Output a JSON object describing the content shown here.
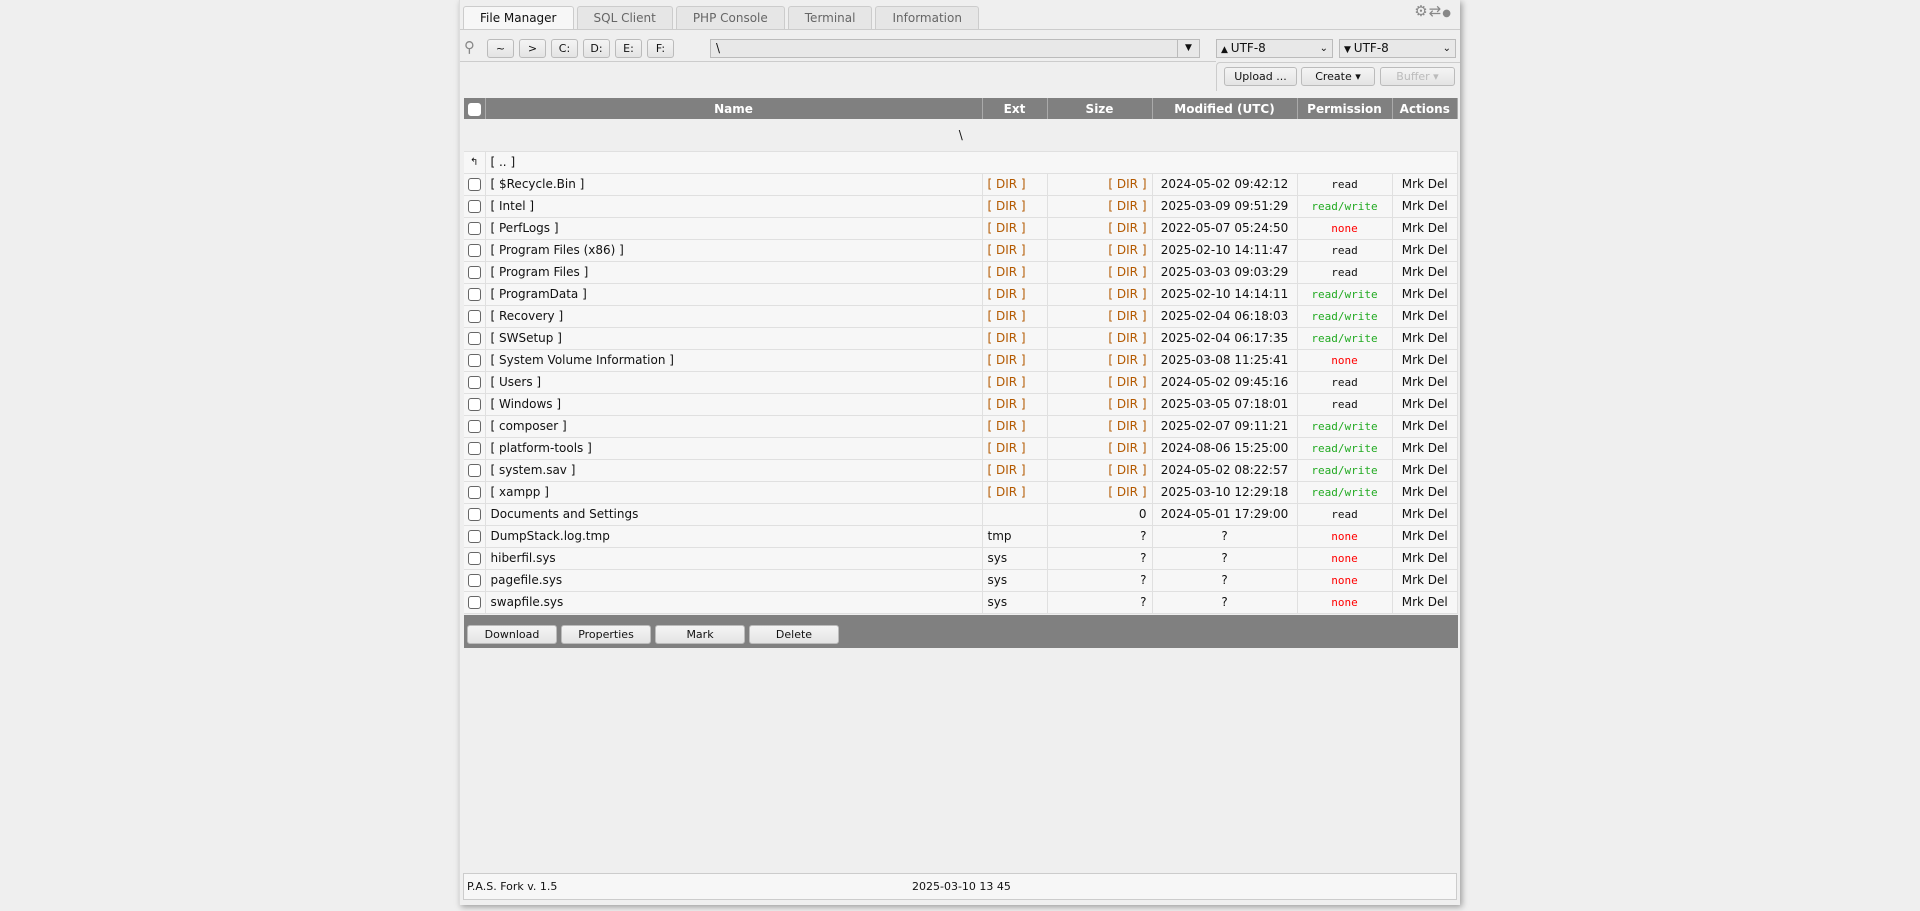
{
  "tabs": [
    "File Manager",
    "SQL Client",
    "PHP Console",
    "Terminal",
    "Information"
  ],
  "top_icons": {
    "settings": "⚙",
    "switch": "⇄",
    "status": "●"
  },
  "toolbar": {
    "nav": [
      "~",
      ">",
      "C:",
      "D:",
      "E:",
      "F:"
    ],
    "path": "\\",
    "encoding_up": "UTF-8",
    "encoding_down": "UTF-8",
    "upload": "Upload ...",
    "create": "Create ▾",
    "buffer": "Buffer ▾"
  },
  "table": {
    "columns": [
      "Name",
      "Ext",
      "Size",
      "Modified (UTC)",
      "Permission",
      "Actions"
    ],
    "current_path": "\\",
    "parent": "[ .. ]",
    "rows": [
      [
        "[ $Recycle.Bin ]",
        "[ DIR ]",
        "[ DIR ]",
        "2024-05-02 09:42:12",
        "read"
      ],
      [
        "[ Intel ]",
        "[ DIR ]",
        "[ DIR ]",
        "2025-03-09 09:51:29",
        "read/write"
      ],
      [
        "[ PerfLogs ]",
        "[ DIR ]",
        "[ DIR ]",
        "2022-05-07 05:24:50",
        "none"
      ],
      [
        "[ Program Files (x86) ]",
        "[ DIR ]",
        "[ DIR ]",
        "2025-02-10 14:11:47",
        "read"
      ],
      [
        "[ Program Files ]",
        "[ DIR ]",
        "[ DIR ]",
        "2025-03-03 09:03:29",
        "read"
      ],
      [
        "[ ProgramData ]",
        "[ DIR ]",
        "[ DIR ]",
        "2025-02-10 14:14:11",
        "read/write"
      ],
      [
        "[ Recovery ]",
        "[ DIR ]",
        "[ DIR ]",
        "2025-02-04 06:18:03",
        "read/write"
      ],
      [
        "[ SWSetup ]",
        "[ DIR ]",
        "[ DIR ]",
        "2025-02-04 06:17:35",
        "read/write"
      ],
      [
        "[ System Volume Information ]",
        "[ DIR ]",
        "[ DIR ]",
        "2025-03-08 11:25:41",
        "none"
      ],
      [
        "[ Users ]",
        "[ DIR ]",
        "[ DIR ]",
        "2024-05-02 09:45:16",
        "read"
      ],
      [
        "[ Windows ]",
        "[ DIR ]",
        "[ DIR ]",
        "2025-03-05 07:18:01",
        "read"
      ],
      [
        "[ composer ]",
        "[ DIR ]",
        "[ DIR ]",
        "2025-02-07 09:11:21",
        "read/write"
      ],
      [
        "[ platform-tools ]",
        "[ DIR ]",
        "[ DIR ]",
        "2024-08-06 15:25:00",
        "read/write"
      ],
      [
        "[ system.sav ]",
        "[ DIR ]",
        "[ DIR ]",
        "2024-05-02 08:22:57",
        "read/write"
      ],
      [
        "[ xampp ]",
        "[ DIR ]",
        "[ DIR ]",
        "2025-03-10 12:29:18",
        "read/write"
      ],
      [
        "Documents and Settings",
        "",
        "0",
        "2024-05-01 17:29:00",
        "read"
      ],
      [
        "DumpStack.log.tmp",
        "tmp",
        "?",
        "?",
        "none"
      ],
      [
        "hiberfil.sys",
        "sys",
        "?",
        "?",
        "none"
      ],
      [
        "pagefile.sys",
        "sys",
        "?",
        "?",
        "none"
      ],
      [
        "swapfile.sys",
        "sys",
        "?",
        "?",
        "none"
      ]
    ],
    "actions": [
      "Mrk",
      "Del"
    ]
  },
  "perm_colors": {
    "read": "#111111",
    "read/write": "#22aa22",
    "none": "#ff0000"
  },
  "dir_bracket_color": "#b35900",
  "bottom_buttons": [
    "Download",
    "Properties",
    "Mark",
    "Delete"
  ],
  "footer": {
    "version": "P.A.S. Fork v. 1.5",
    "datetime": "2025-03-10 13 45"
  }
}
